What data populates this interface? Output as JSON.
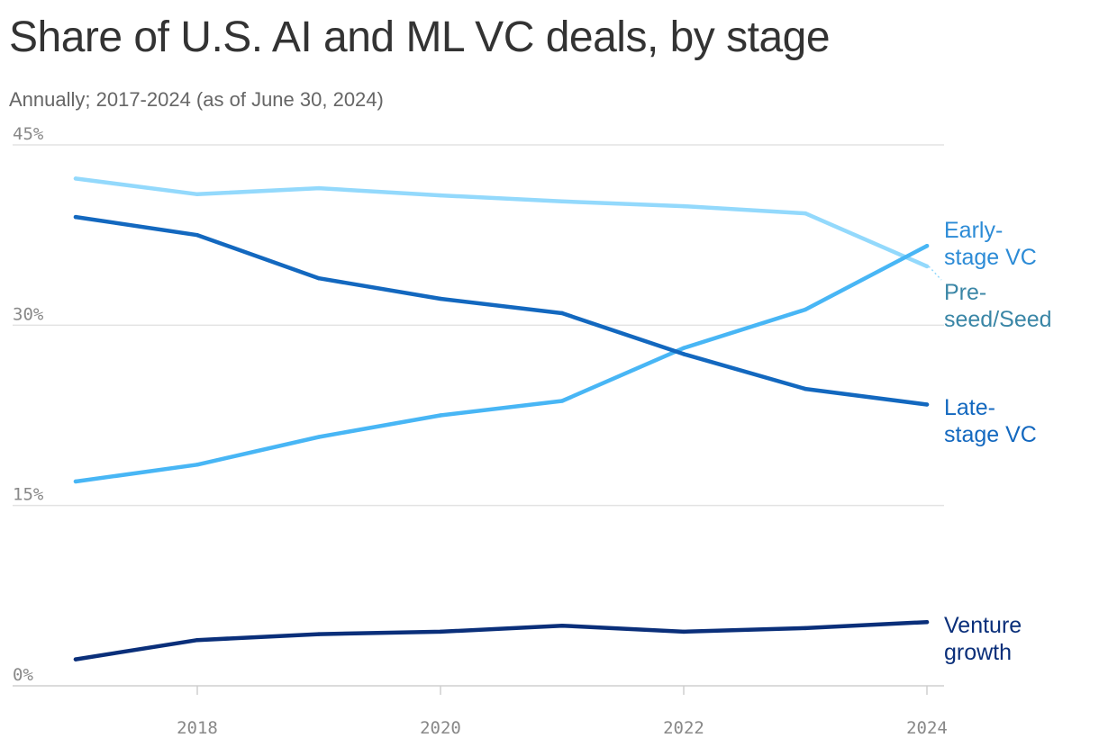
{
  "header": {
    "title": "Share of U.S. AI and ML VC deals, by stage",
    "subtitle": "Annually; 2017-2024 (as of June 30, 2024)"
  },
  "chart_data": {
    "type": "line",
    "title": "Share of U.S. AI and ML VC deals, by stage",
    "subtitle": "Annually; 2017-2024 (as of June 30, 2024)",
    "xlabel": "",
    "ylabel": "",
    "x": [
      2017,
      2018,
      2019,
      2020,
      2021,
      2022,
      2023,
      2024
    ],
    "x_ticks": [
      "2018",
      "2020",
      "2022",
      "2024"
    ],
    "y_ticks": [
      "0%",
      "15%",
      "30%",
      "45%"
    ],
    "ylim": [
      0,
      45
    ],
    "grid": true,
    "series": [
      {
        "name": "Pre-seed/Seed",
        "label_lines": [
          "Pre-",
          "seed/Seed"
        ],
        "color": "#93D9FC",
        "label_color": "#3A86A6",
        "values": [
          42.2,
          40.9,
          41.4,
          40.8,
          40.3,
          39.9,
          39.3,
          34.9
        ]
      },
      {
        "name": "Early-stage VC",
        "label_lines": [
          "Early-",
          "stage VC"
        ],
        "color": "#48B6F5",
        "label_color": "#2C8BD6",
        "values": [
          17.0,
          18.4,
          20.7,
          22.5,
          23.7,
          28.1,
          31.3,
          36.6
        ]
      },
      {
        "name": "Late-stage VC",
        "label_lines": [
          "Late-",
          "stage VC"
        ],
        "color": "#1368BF",
        "label_color": "#1368BF",
        "values": [
          39.0,
          37.5,
          33.9,
          32.2,
          31.0,
          27.6,
          24.7,
          23.4
        ]
      },
      {
        "name": "Venture growth",
        "label_lines": [
          "Venture",
          "growth"
        ],
        "color": "#0A2F7A",
        "label_color": "#0A2F7A",
        "values": [
          2.2,
          3.8,
          4.3,
          4.5,
          5.0,
          4.5,
          4.8,
          5.3
        ]
      }
    ]
  }
}
